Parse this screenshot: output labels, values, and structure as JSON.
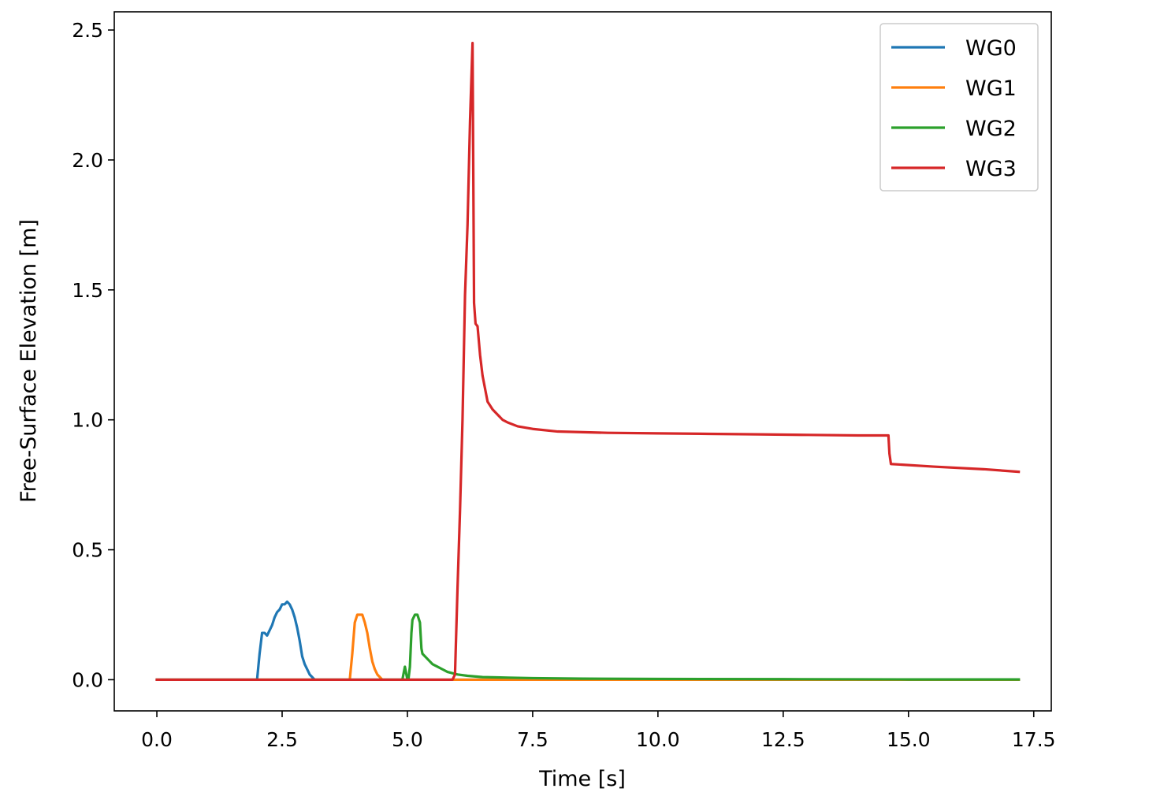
{
  "chart_data": {
    "type": "line",
    "title": "",
    "xlabel": "Time [s]",
    "ylabel": "Free-Surface Elevation [m]",
    "xlim": [
      -0.85,
      17.85
    ],
    "ylim": [
      -0.12,
      2.57
    ],
    "xticks": [
      0.0,
      2.5,
      5.0,
      7.5,
      10.0,
      12.5,
      15.0,
      17.5
    ],
    "xtick_labels": [
      "0.0",
      "2.5",
      "5.0",
      "7.5",
      "10.0",
      "12.5",
      "15.0",
      "17.5"
    ],
    "yticks": [
      0.0,
      0.5,
      1.0,
      1.5,
      2.0,
      2.5
    ],
    "ytick_labels": [
      "0.0",
      "0.5",
      "1.0",
      "1.5",
      "2.0",
      "2.5"
    ],
    "grid": false,
    "legend_position": "top-right",
    "series": [
      {
        "name": "WG0",
        "color": "#1f77b4",
        "x": [
          0.0,
          2.0,
          2.05,
          2.1,
          2.15,
          2.2,
          2.25,
          2.3,
          2.35,
          2.4,
          2.45,
          2.5,
          2.55,
          2.6,
          2.65,
          2.7,
          2.75,
          2.8,
          2.85,
          2.9,
          2.95,
          3.0,
          3.05,
          3.1,
          3.15,
          3.2,
          17.2
        ],
        "y": [
          0.0,
          0.0,
          0.1,
          0.18,
          0.18,
          0.17,
          0.19,
          0.21,
          0.24,
          0.26,
          0.27,
          0.29,
          0.29,
          0.3,
          0.29,
          0.27,
          0.24,
          0.2,
          0.15,
          0.09,
          0.06,
          0.04,
          0.02,
          0.01,
          0.0,
          0.0,
          0.0
        ]
      },
      {
        "name": "WG1",
        "color": "#ff7f0e",
        "x": [
          0.0,
          3.85,
          3.9,
          3.95,
          4.0,
          4.05,
          4.1,
          4.15,
          4.2,
          4.25,
          4.3,
          4.35,
          4.4,
          4.45,
          4.5,
          4.55,
          17.2
        ],
        "y": [
          0.0,
          0.0,
          0.1,
          0.22,
          0.25,
          0.25,
          0.25,
          0.22,
          0.18,
          0.12,
          0.07,
          0.04,
          0.02,
          0.01,
          0.0,
          0.0,
          0.0
        ]
      },
      {
        "name": "WG2",
        "color": "#2ca02c",
        "x": [
          0.0,
          4.9,
          4.95,
          5.0,
          5.02,
          5.05,
          5.08,
          5.1,
          5.15,
          5.2,
          5.25,
          5.28,
          5.3,
          5.35,
          5.4,
          5.5,
          5.6,
          5.7,
          5.8,
          5.9,
          6.0,
          6.2,
          6.5,
          7.0,
          7.5,
          8.5,
          10.0,
          12.5,
          15.0,
          17.2
        ],
        "y": [
          0.0,
          0.0,
          0.05,
          0.0,
          0.0,
          0.05,
          0.18,
          0.23,
          0.25,
          0.25,
          0.22,
          0.12,
          0.1,
          0.09,
          0.08,
          0.06,
          0.05,
          0.04,
          0.03,
          0.025,
          0.02,
          0.015,
          0.01,
          0.008,
          0.006,
          0.004,
          0.003,
          0.002,
          0.001,
          0.001
        ]
      },
      {
        "name": "WG3",
        "color": "#d62728",
        "x": [
          0.0,
          5.9,
          5.95,
          6.0,
          6.05,
          6.1,
          6.15,
          6.2,
          6.25,
          6.3,
          6.33,
          6.36,
          6.4,
          6.45,
          6.5,
          6.6,
          6.7,
          6.8,
          6.9,
          7.0,
          7.2,
          7.5,
          8.0,
          9.0,
          10.0,
          11.0,
          12.0,
          13.0,
          14.0,
          14.6,
          14.62,
          14.65,
          15.5,
          16.5,
          17.2
        ],
        "y": [
          0.0,
          0.0,
          0.02,
          0.35,
          0.65,
          1.0,
          1.48,
          1.75,
          2.15,
          2.45,
          1.45,
          1.37,
          1.36,
          1.25,
          1.17,
          1.07,
          1.04,
          1.02,
          1.0,
          0.99,
          0.975,
          0.965,
          0.955,
          0.95,
          0.948,
          0.946,
          0.944,
          0.942,
          0.94,
          0.94,
          0.87,
          0.83,
          0.82,
          0.81,
          0.8
        ]
      }
    ]
  }
}
